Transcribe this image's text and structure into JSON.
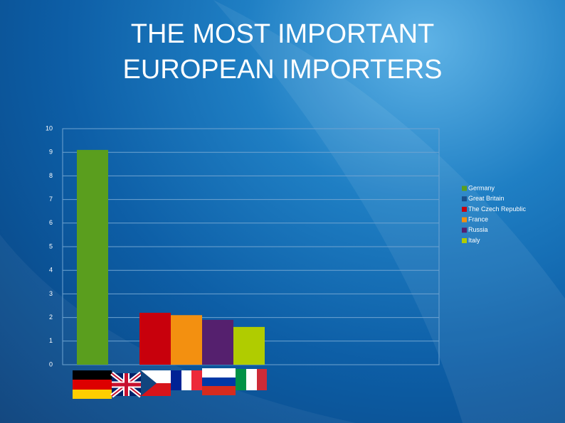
{
  "chart_data": {
    "type": "bar",
    "title": [
      "THE MOST IMPORTANT",
      "EUROPEAN IMPORTERS"
    ],
    "ylim": [
      0,
      10
    ],
    "yticks": [
      0,
      1,
      2,
      3,
      4,
      5,
      6,
      7,
      8,
      9,
      10
    ],
    "grid": true,
    "legend": "right",
    "series": [
      {
        "name": "Germany",
        "color": "#5a9e1e",
        "values": [
          9.1
        ]
      },
      {
        "name": "Great Britain",
        "color": "#1a4f8a",
        "values": [
          null
        ]
      },
      {
        "name": "The Czech Republic",
        "color": "#c8000c",
        "values": [
          2.2
        ]
      },
      {
        "name": "France",
        "color": "#f39010",
        "values": [
          2.1
        ]
      },
      {
        "name": "Russia",
        "color": "#55206e",
        "values": [
          1.9
        ]
      },
      {
        "name": "Italy",
        "color": "#b0cc00",
        "values": [
          1.6
        ]
      }
    ]
  }
}
